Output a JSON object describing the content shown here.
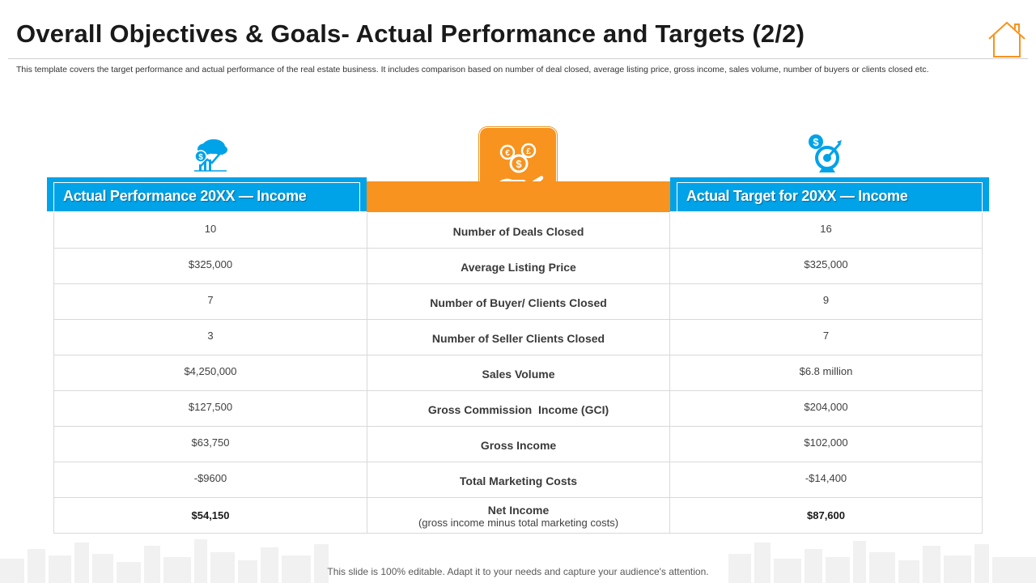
{
  "slide": {
    "title": "Overall Objectives & Goals- Actual Performance and Targets (2/2)",
    "description": "This template covers the target performance and actual performance of the real estate business. It includes comparison based on number of deal closed, average listing price, gross income, sales volume,  number of buyers or clients closed etc.",
    "footer": "This slide is 100% editable. Adapt it to your needs and capture your audience's attention."
  },
  "icons": {
    "header": "house-outline-icon",
    "left": "money-growth-chart-icon",
    "center": "coins-in-hand-icon",
    "right": "dollar-target-icon"
  },
  "colors": {
    "accent_blue": "#00a2e8",
    "accent_orange": "#f7931e"
  },
  "table": {
    "left_header": "Actual Performance 20XX — Income",
    "right_header": "Actual Target for 20XX — Income",
    "rows": [
      {
        "actual": "10",
        "metric": "Number of Deals Closed",
        "metric_note": "",
        "target": "16"
      },
      {
        "actual": "$325,000",
        "metric": "Average Listing Price",
        "metric_note": "",
        "target": "$325,000"
      },
      {
        "actual": "7",
        "metric": "Number of Buyer/ Clients Closed",
        "metric_note": "",
        "target": "9"
      },
      {
        "actual": "3",
        "metric": "Number of Seller Clients Closed",
        "metric_note": "",
        "target": "7"
      },
      {
        "actual": "$4,250,000",
        "metric": "Sales Volume",
        "metric_note": "",
        "target": "$6.8 million"
      },
      {
        "actual": "$127,500",
        "metric": "Gross Commission  Income (GCI)",
        "metric_note": "",
        "target": "$204,000"
      },
      {
        "actual": "$63,750",
        "metric": "Gross Income",
        "metric_note": "",
        "target": "$102,000"
      },
      {
        "actual": "-$9600",
        "metric": "Total Marketing Costs",
        "metric_note": "",
        "target": "-$14,400"
      },
      {
        "actual": "$54,150",
        "metric": "Net Income",
        "metric_note": "(gross income minus total marketing costs)",
        "target": "$87,600"
      }
    ]
  }
}
